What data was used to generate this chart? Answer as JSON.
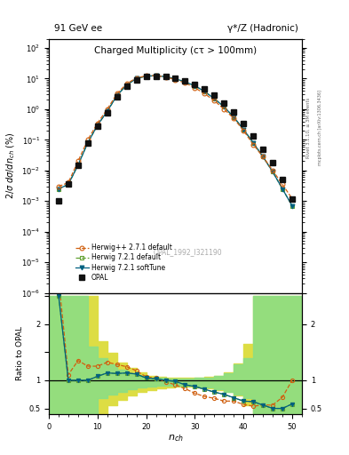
{
  "title_main": "Charged Multiplicity (cτ > 100mm)",
  "header_left": "91 GeV ee",
  "header_right": "γ*/Z (Hadronic)",
  "right_label": "Rivet 3.1.10, ≥ 3M events",
  "right_label2": "mcplots.cern.ch [arXiv:1306.3436]",
  "watermark": "OPAL_1992_I321190",
  "ylabel_main": "2/σ dσ/dn_{ch} (%)",
  "ylabel_ratio": "Ratio to OPAL",
  "nch": [
    2,
    4,
    6,
    8,
    10,
    12,
    14,
    16,
    18,
    20,
    22,
    24,
    26,
    28,
    30,
    32,
    34,
    36,
    38,
    40,
    42,
    44,
    46,
    48,
    50
  ],
  "opal_y": [
    0.001,
    0.0035,
    0.015,
    0.08,
    0.28,
    0.75,
    2.5,
    5.5,
    9.0,
    11.5,
    12.0,
    11.5,
    10.0,
    8.5,
    6.5,
    4.5,
    2.8,
    1.6,
    0.8,
    0.35,
    0.13,
    0.05,
    0.018,
    0.005,
    0.0012
  ],
  "herwig_pp_y": [
    0.003,
    0.004,
    0.02,
    0.1,
    0.35,
    1.0,
    3.2,
    6.8,
    10.5,
    12.2,
    12.5,
    11.2,
    9.2,
    7.2,
    5.0,
    3.2,
    1.9,
    1.0,
    0.5,
    0.2,
    0.07,
    0.028,
    0.01,
    0.0035,
    0.0012
  ],
  "herwig72_default_y": [
    0.0025,
    0.0035,
    0.015,
    0.08,
    0.3,
    0.85,
    2.8,
    6.2,
    10.0,
    12.0,
    12.3,
    11.5,
    9.8,
    7.8,
    5.8,
    3.8,
    2.2,
    1.2,
    0.55,
    0.22,
    0.08,
    0.028,
    0.009,
    0.0025,
    0.0007
  ],
  "herwig72_soft_y": [
    0.0025,
    0.0035,
    0.015,
    0.08,
    0.3,
    0.85,
    2.8,
    6.2,
    10.0,
    12.0,
    12.3,
    11.5,
    9.8,
    7.8,
    5.8,
    3.8,
    2.2,
    1.2,
    0.55,
    0.22,
    0.08,
    0.028,
    0.009,
    0.0025,
    0.0007
  ],
  "ratio_pp": [
    2.8,
    1.1,
    1.35,
    1.25,
    1.25,
    1.32,
    1.28,
    1.24,
    1.17,
    1.06,
    1.04,
    0.97,
    0.92,
    0.85,
    0.77,
    0.71,
    0.68,
    0.63,
    0.63,
    0.57,
    0.54,
    0.56,
    0.56,
    0.7,
    1.0
  ],
  "ratio_72def": [
    2.5,
    1.0,
    1.0,
    1.0,
    1.07,
    1.13,
    1.12,
    1.13,
    1.11,
    1.04,
    1.025,
    1.0,
    0.98,
    0.92,
    0.89,
    0.84,
    0.79,
    0.75,
    0.69,
    0.63,
    0.62,
    0.56,
    0.5,
    0.5,
    0.58
  ],
  "ratio_72soft": [
    2.5,
    1.0,
    1.0,
    1.0,
    1.07,
    1.13,
    1.12,
    1.13,
    1.11,
    1.04,
    1.025,
    1.0,
    0.98,
    0.92,
    0.89,
    0.84,
    0.79,
    0.75,
    0.69,
    0.63,
    0.62,
    0.56,
    0.5,
    0.5,
    0.58
  ],
  "band_x": [
    0,
    2,
    4,
    6,
    8,
    10,
    12,
    14,
    16,
    18,
    20,
    22,
    24,
    26,
    28,
    30,
    32,
    34,
    36,
    38,
    40,
    42,
    44,
    46,
    48,
    50,
    52
  ],
  "band_green_lo": [
    0.4,
    0.4,
    0.4,
    0.4,
    0.4,
    0.68,
    0.75,
    0.8,
    0.84,
    0.87,
    0.89,
    0.9,
    0.9,
    0.9,
    0.9,
    0.89,
    0.87,
    0.84,
    0.8,
    0.75,
    0.68,
    0.4,
    0.4,
    0.4,
    0.4,
    0.4,
    0.4
  ],
  "band_green_hi": [
    2.5,
    2.5,
    2.5,
    2.5,
    1.6,
    1.4,
    1.28,
    1.18,
    1.12,
    1.08,
    1.05,
    1.04,
    1.03,
    1.03,
    1.03,
    1.04,
    1.05,
    1.08,
    1.12,
    1.28,
    1.4,
    2.5,
    2.5,
    2.5,
    2.5,
    2.5,
    2.5
  ],
  "band_yellow_lo": [
    0.4,
    0.4,
    0.4,
    0.4,
    0.4,
    0.4,
    0.55,
    0.65,
    0.73,
    0.79,
    0.83,
    0.86,
    0.87,
    0.88,
    0.88,
    0.87,
    0.86,
    0.83,
    0.79,
    0.73,
    0.55,
    0.4,
    0.4,
    0.4,
    0.4,
    0.4,
    0.4
  ],
  "band_yellow_hi": [
    2.5,
    2.5,
    2.5,
    2.5,
    2.5,
    1.7,
    1.48,
    1.32,
    1.22,
    1.14,
    1.08,
    1.06,
    1.05,
    1.04,
    1.04,
    1.05,
    1.06,
    1.08,
    1.14,
    1.3,
    1.65,
    2.5,
    2.5,
    2.5,
    2.5,
    2.5,
    2.5
  ],
  "color_opal": "#111111",
  "color_pp": "#d06010",
  "color_72def": "#60a030",
  "color_72soft": "#006080",
  "color_band_green": "#88dd88",
  "color_band_yellow": "#dddd44"
}
